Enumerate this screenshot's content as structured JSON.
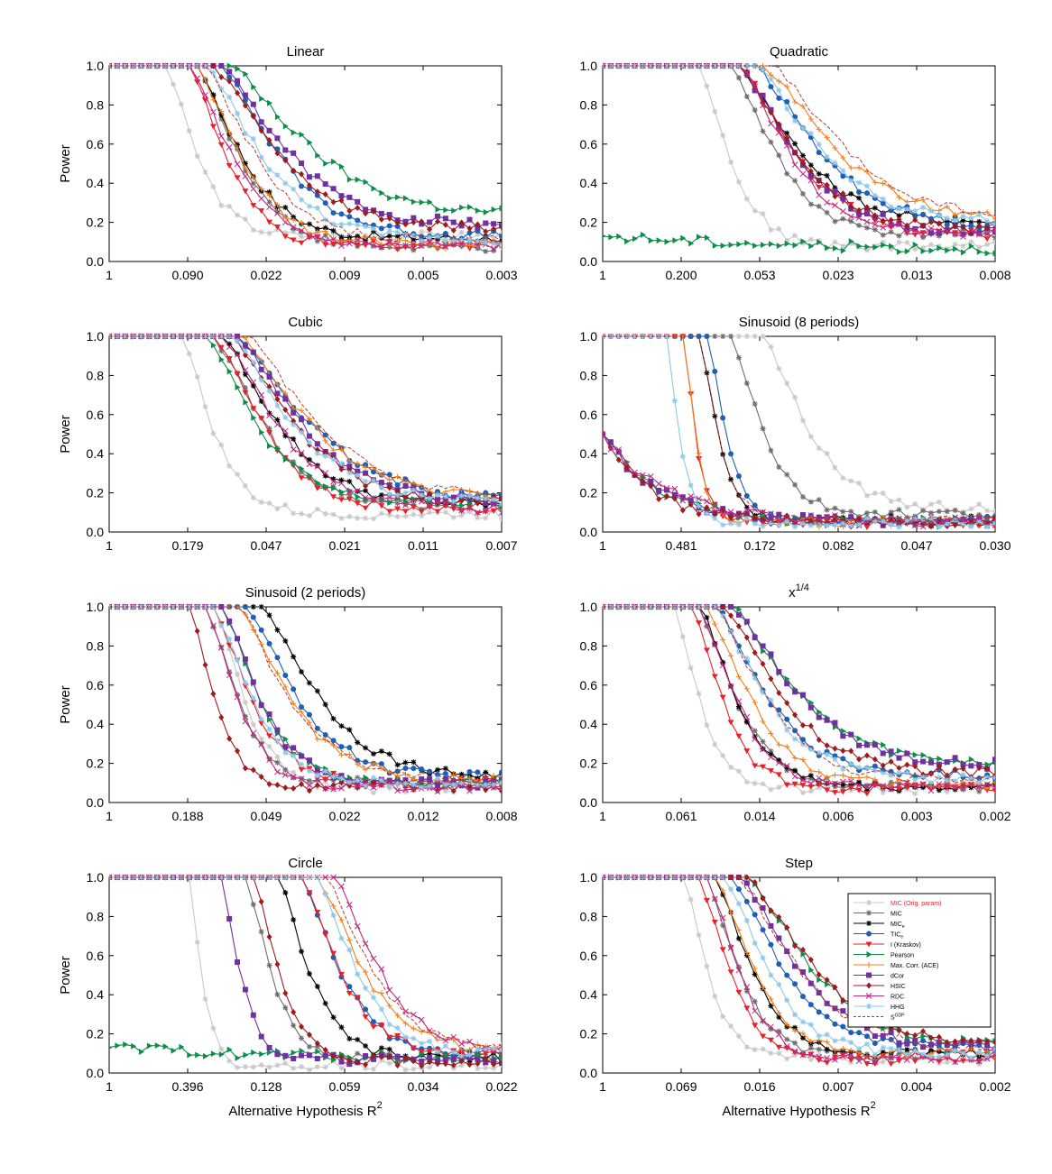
{
  "chart_data": {
    "type": "line",
    "ylabel": "Power",
    "xlabel": "Alternative Hypothesis R",
    "xlabel_sup": "2",
    "y_ticks": [
      "0.0",
      "0.2",
      "0.4",
      "0.6",
      "0.8",
      "1.0"
    ],
    "ylim": [
      0,
      1
    ],
    "x_points": 50,
    "series": [
      {
        "key": "mic_orig",
        "name": "MIC (Orig. param)",
        "color": "#c8c8c8",
        "marker": "star"
      },
      {
        "key": "mic",
        "name": "MIC",
        "color": "#6e6e6e",
        "marker": "star"
      },
      {
        "key": "mice",
        "name": "MIC",
        "sub": "e",
        "color": "#000000",
        "marker": "star"
      },
      {
        "key": "tice",
        "name": "TIC",
        "sub": "e",
        "color": "#1f5fb3",
        "marker": "circle"
      },
      {
        "key": "kraskov",
        "name": "I (Kraskov)",
        "color": "#e8202a",
        "marker": "tri-down"
      },
      {
        "key": "pearson",
        "name": "Pearson",
        "color": "#0d8c4a",
        "marker": "tri-right"
      },
      {
        "key": "ace",
        "name": "Max. Corr. (ACE)",
        "color": "#f07f1a",
        "marker": "plus"
      },
      {
        "key": "dcor",
        "name": "dCor",
        "color": "#7030a0",
        "marker": "square"
      },
      {
        "key": "hsic",
        "name": "HSIC",
        "color": "#9b1b1f",
        "marker": "diamond"
      },
      {
        "key": "rdc",
        "name": "RDC",
        "color": "#c0287f",
        "marker": "x"
      },
      {
        "key": "hhg",
        "name": "HHG",
        "color": "#8fc8e8",
        "marker": "star"
      },
      {
        "key": "sgdp",
        "name": "S",
        "sup": "GDP",
        "color": "#c0392b",
        "marker": "none",
        "dash": true
      }
    ],
    "panels": [
      {
        "title": "Linear",
        "x_ticks": [
          "1",
          "0.090",
          "0.022",
          "0.009",
          "0.005",
          "0.003"
        ],
        "show_ylabel": true,
        "show_xlabel": false,
        "legend": false,
        "curves": {
          "mic_orig": [
            7,
            5,
            0.13
          ],
          "mic": [
            11,
            7,
            0.07
          ],
          "mice": [
            11,
            7,
            0.12
          ],
          "tice": [
            14,
            9,
            0.13
          ],
          "kraskov": [
            10,
            6,
            0.08
          ],
          "pearson": [
            15,
            12,
            0.24
          ],
          "ace": [
            11,
            7,
            0.09
          ],
          "dcor": [
            14,
            10,
            0.19
          ],
          "hsic": [
            13,
            10,
            0.17
          ],
          "rdc": [
            10,
            7,
            0.08
          ],
          "hhg": [
            12,
            9,
            0.11
          ],
          "sgdp": [
            12,
            8,
            0.11
          ]
        }
      },
      {
        "title": "Quadratic",
        "x_ticks": [
          "1",
          "0.200",
          "0.053",
          "0.023",
          "0.013",
          "0.008"
        ],
        "show_ylabel": false,
        "show_xlabel": false,
        "legend": false,
        "curves": {
          "mic_orig": [
            12,
            5,
            0.08
          ],
          "mic": [
            16,
            7,
            0.14
          ],
          "mice": [
            17,
            9,
            0.2
          ],
          "tice": [
            19,
            10,
            0.18
          ],
          "kraskov": [
            17,
            9,
            0.13
          ],
          "pearson": [
            0,
            20,
            0.05
          ],
          "ace": [
            20,
            11,
            0.21
          ],
          "dcor": [
            17,
            9,
            0.15
          ],
          "hsic": [
            17,
            9,
            0.16
          ],
          "rdc": [
            17,
            8,
            0.14
          ],
          "hhg": [
            19,
            10,
            0.2
          ],
          "sgdp": [
            21,
            11,
            0.22
          ]
        }
      },
      {
        "title": "Cubic",
        "x_ticks": [
          "1",
          "0.179",
          "0.047",
          "0.021",
          "0.011",
          "0.007"
        ],
        "show_ylabel": true,
        "show_xlabel": false,
        "legend": false,
        "curves": {
          "mic_orig": [
            9,
            5,
            0.09
          ],
          "mic": [
            13,
            8,
            0.13
          ],
          "mice": [
            14,
            9,
            0.14
          ],
          "tice": [
            16,
            11,
            0.17
          ],
          "kraskov": [
            13,
            8,
            0.11
          ],
          "pearson": [
            12,
            8,
            0.15
          ],
          "ace": [
            16,
            11,
            0.17
          ],
          "dcor": [
            16,
            10,
            0.16
          ],
          "hsic": [
            15,
            10,
            0.15
          ],
          "rdc": [
            14,
            9,
            0.12
          ],
          "hhg": [
            15,
            10,
            0.15
          ],
          "sgdp": [
            17,
            11,
            0.18
          ]
        }
      },
      {
        "title": "Sinusoid (8 periods)",
        "x_ticks": [
          "1",
          "0.481",
          "0.172",
          "0.082",
          "0.047",
          "0.030"
        ],
        "show_ylabel": false,
        "show_xlabel": false,
        "legend": false,
        "curves": {
          "mic_orig": [
            20,
            7,
            0.12
          ],
          "mic": [
            16,
            5,
            0.09
          ],
          "mice": [
            12,
            3,
            0.06
          ],
          "tice": [
            13,
            3,
            0.06
          ],
          "kraskov": [
            10,
            2,
            0.05
          ],
          "pearson": [
            0,
            7,
            0.05
          ],
          "ace": [
            10,
            2,
            0.05
          ],
          "dcor": [
            0,
            7,
            0.05
          ],
          "hsic": [
            0,
            6,
            0.05
          ],
          "rdc": [
            0,
            8,
            0.05
          ],
          "hhg": [
            8,
            2,
            0.05
          ],
          "sgdp": [
            12,
            3,
            0.06
          ]
        }
      },
      {
        "title": "Sinusoid (2 periods)",
        "x_ticks": [
          "1",
          "0.188",
          "0.049",
          "0.022",
          "0.012",
          "0.008"
        ],
        "show_ylabel": true,
        "show_xlabel": false,
        "legend": false,
        "curves": {
          "mic_orig": [
            13,
            5,
            0.07
          ],
          "mic": [
            12,
            5,
            0.1
          ],
          "mice": [
            19,
            9,
            0.13
          ],
          "tice": [
            17,
            8,
            0.13
          ],
          "kraskov": [
            13,
            6,
            0.1
          ],
          "pearson": [
            14,
            6,
            0.1
          ],
          "ace": [
            16,
            8,
            0.12
          ],
          "dcor": [
            14,
            6,
            0.1
          ],
          "hsic": [
            10,
            4,
            0.08
          ],
          "rdc": [
            12,
            5,
            0.08
          ],
          "hhg": [
            13,
            6,
            0.1
          ],
          "sgdp": [
            16,
            8,
            0.12
          ]
        }
      },
      {
        "title": "x",
        "title_sup": "1/4",
        "x_ticks": [
          "1",
          "0.061",
          "0.014",
          "0.006",
          "0.003",
          "0.002"
        ],
        "show_ylabel": false,
        "show_xlabel": false,
        "legend": false,
        "curves": {
          "mic_orig": [
            9,
            4,
            0.07
          ],
          "mic": [
            12,
            6,
            0.08
          ],
          "mice": [
            12,
            6,
            0.08
          ],
          "tice": [
            14,
            8,
            0.14
          ],
          "kraskov": [
            11,
            5,
            0.07
          ],
          "pearson": [
            16,
            10,
            0.2
          ],
          "ace": [
            13,
            7,
            0.09
          ],
          "dcor": [
            16,
            10,
            0.19
          ],
          "hsic": [
            15,
            9,
            0.15
          ],
          "rdc": [
            12,
            6,
            0.08
          ],
          "hhg": [
            14,
            8,
            0.12
          ],
          "sgdp": [
            14,
            8,
            0.12
          ]
        }
      },
      {
        "title": "Circle",
        "x_ticks": [
          "1",
          "0.396",
          "0.128",
          "0.059",
          "0.034",
          "0.022"
        ],
        "show_ylabel": true,
        "show_xlabel": true,
        "legend": false,
        "curves": {
          "mic_orig": [
            10,
            2,
            0.04
          ],
          "mic": [
            17,
            4,
            0.08
          ],
          "mice": [
            21,
            5,
            0.08
          ],
          "tice": [
            24,
            6,
            0.1
          ],
          "kraskov": [
            24,
            6,
            0.1
          ],
          "pearson": [
            0,
            50,
            0.06
          ],
          "ace": [
            26,
            7,
            0.12
          ],
          "dcor": [
            14,
            3,
            0.07
          ],
          "hsic": [
            18,
            4,
            0.06
          ],
          "rdc": [
            28,
            7,
            0.12
          ],
          "hhg": [
            26,
            6,
            0.1
          ],
          "sgdp": [
            27,
            7,
            0.12
          ]
        }
      },
      {
        "title": "Step",
        "x_ticks": [
          "1",
          "0.069",
          "0.016",
          "0.007",
          "0.004",
          "0.002"
        ],
        "show_ylabel": false,
        "show_xlabel": true,
        "legend": true,
        "curves": {
          "mic_orig": [
            10,
            4,
            0.07
          ],
          "mic": [
            13,
            5,
            0.09
          ],
          "mice": [
            14,
            6,
            0.1
          ],
          "tice": [
            16,
            8,
            0.13
          ],
          "kraskov": [
            12,
            5,
            0.07
          ],
          "pearson": [
            18,
            10,
            0.14
          ],
          "ace": [
            14,
            6,
            0.1
          ],
          "dcor": [
            17,
            9,
            0.13
          ],
          "hsic": [
            18,
            10,
            0.15
          ],
          "rdc": [
            13,
            5,
            0.08
          ],
          "hhg": [
            15,
            7,
            0.1
          ],
          "sgdp": [
            17,
            9,
            0.13
          ]
        }
      }
    ]
  }
}
